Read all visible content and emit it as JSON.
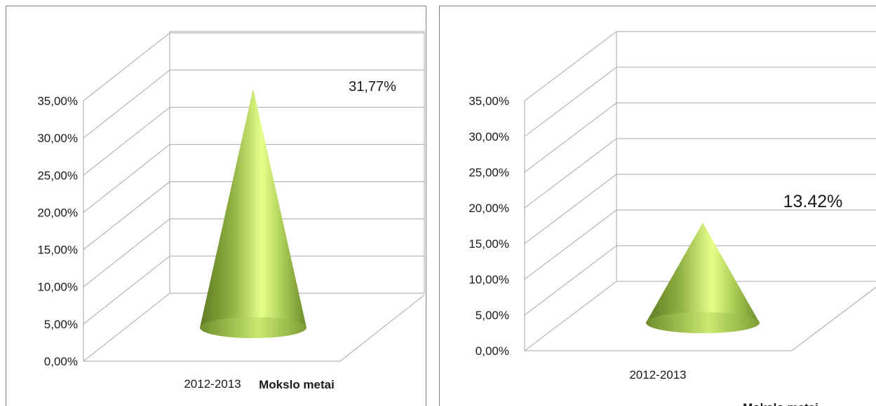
{
  "chart_data": [
    {
      "type": "bar",
      "shape": "3d-cone",
      "categories": [
        "2012-2013"
      ],
      "values": [
        31.77
      ],
      "data_label": "31,77%",
      "xlabel": "Mokslo metai",
      "ylim": [
        0,
        35
      ],
      "y_ticks": [
        "0,00%",
        "5,00%",
        "10,00%",
        "15,00%",
        "20,00%",
        "25,00%",
        "30,00%",
        "35,00%"
      ],
      "grid": true,
      "colors": {
        "cone": "#9bbb59",
        "highlight": "#e6ff8a",
        "grid": "#a6a6a6"
      }
    },
    {
      "type": "bar",
      "shape": "3d-cone",
      "categories": [
        "2012-2013"
      ],
      "values": [
        13.42
      ],
      "data_label": "13.42%",
      "xlabel": "Mokslo metai",
      "ylim": [
        0,
        35
      ],
      "y_ticks": [
        "0,00%",
        "5,00%",
        "10,00%",
        "15,00%",
        "20,00%",
        "25,00%",
        "30,00%",
        "35,00%"
      ],
      "grid": true,
      "colors": {
        "cone": "#9bbb59",
        "highlight": "#e6ff8a",
        "grid": "#a6a6a6"
      }
    }
  ]
}
